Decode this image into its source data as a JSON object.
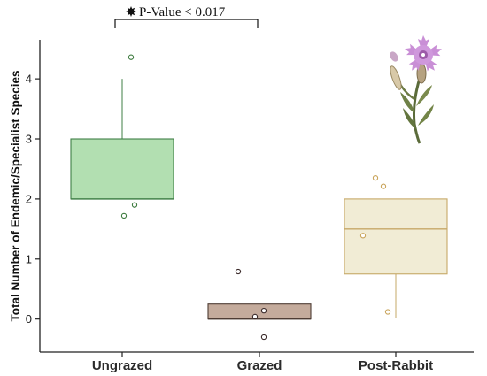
{
  "chart_data": {
    "type": "box",
    "title": "",
    "xlabel": "",
    "ylabel": "Total Number of Endemic/Specialist Species",
    "ylim": [
      -0.55,
      4.65
    ],
    "yticks": [
      0,
      1,
      2,
      3,
      4
    ],
    "categories": [
      "Ungrazed",
      "Grazed",
      "Post-Rabbit"
    ],
    "boxes": [
      {
        "category": "Ungrazed",
        "q1": 2,
        "median": 2,
        "q3": 3,
        "whisker_low": 2,
        "whisker_high": 4,
        "fill": "#b2dfb1",
        "stroke": "#3f7f46"
      },
      {
        "category": "Grazed",
        "q1": 0,
        "median": 0,
        "q3": 0.25,
        "whisker_low": 0,
        "whisker_high": 0.25,
        "fill": "#c4ab9c",
        "stroke": "#4e3c34"
      },
      {
        "category": "Post-Rabbit",
        "q1": 0.75,
        "median": 1.5,
        "q3": 2,
        "whisker_low": 0.02,
        "whisker_high": 2,
        "fill": "#f1ecd5",
        "stroke": "#c6a867"
      }
    ],
    "points": [
      {
        "category": "Ungrazed",
        "offset": 0.1,
        "y": 4.36
      },
      {
        "category": "Ungrazed",
        "offset": 0.14,
        "y": 1.9
      },
      {
        "category": "Ungrazed",
        "offset": 0.02,
        "y": 1.72
      },
      {
        "category": "Grazed",
        "offset": -0.24,
        "y": 0.79
      },
      {
        "category": "Grazed",
        "offset": 0.05,
        "y": 0.14
      },
      {
        "category": "Grazed",
        "offset": -0.05,
        "y": 0.04
      },
      {
        "category": "Grazed",
        "offset": 0.05,
        "y": -0.3
      },
      {
        "category": "Post-Rabbit",
        "offset": -0.23,
        "y": 2.35
      },
      {
        "category": "Post-Rabbit",
        "offset": -0.14,
        "y": 2.21
      },
      {
        "category": "Post-Rabbit",
        "offset": -0.37,
        "y": 1.39
      },
      {
        "category": "Post-Rabbit",
        "offset": -0.09,
        "y": 0.12
      }
    ],
    "significance": {
      "from": "Ungrazed",
      "to": "Grazed",
      "label": "P-Value < 0.017",
      "symbol": "star"
    },
    "grid": false
  }
}
